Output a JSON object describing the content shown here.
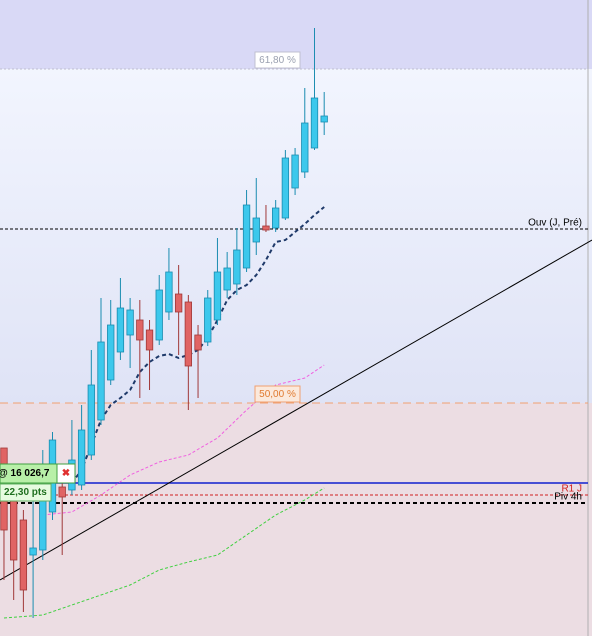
{
  "chart_data": {
    "type": "candlestick",
    "ylim": [
      15992.8,
      16120
    ],
    "xlim": [
      -0.41,
      60.6
    ],
    "up_color": "#3cc8ec",
    "down_color": "#e06464",
    "candles": {
      "open": [
        16030.4,
        16020,
        16016,
        16009,
        16010,
        16017.6,
        16022.6,
        16022,
        16023,
        16029,
        16036,
        16044,
        16049.6,
        16053,
        16056,
        16054,
        16052,
        16057.6,
        16061.2,
        16059.6,
        16053,
        16051.6,
        16056,
        16062,
        16063.2,
        16066.4,
        16071.6,
        16074.8,
        16074.4,
        16076.4,
        16082.4,
        16085.6,
        16090.4,
        16095.6
      ],
      "close": [
        16014,
        16008,
        16002,
        16010.4,
        16026,
        16032,
        16020.6,
        16028,
        16034,
        16043,
        16051.6,
        16055,
        16058.4,
        16058,
        16052,
        16050,
        16062,
        16065.6,
        16057.6,
        16046.8,
        16050,
        16060.4,
        16065.6,
        16066.4,
        16070,
        16079,
        16076.4,
        16074,
        16078.4,
        16088.4,
        16089,
        16095.4,
        16100.4,
        16096.8
      ],
      "high": [
        16030.4,
        16022,
        16018,
        16020,
        16030,
        16033.6,
        16026,
        16036,
        16039,
        16050,
        16060.4,
        16060,
        16064.4,
        16060.4,
        16060,
        16056,
        16065,
        16070.4,
        16067,
        16061,
        16055,
        16062,
        16072.4,
        16069.6,
        16074.4,
        16082,
        16084.4,
        16079,
        16080,
        16090,
        16090.4,
        16102.4,
        16114.4,
        16101.6
      ],
      "low": [
        16004,
        16000,
        15997.6,
        15996.4,
        16008,
        16016,
        16009,
        16021,
        16022,
        16028,
        16035,
        16043,
        16048,
        16046.4,
        16040.4,
        16042,
        16051,
        16056,
        16049,
        16038,
        16040.4,
        16050.8,
        16055,
        16060.4,
        16061,
        16065.6,
        16069,
        16073.6,
        16073.6,
        16076,
        16081,
        16084.4,
        16090,
        16093
      ]
    },
    "series": [
      {
        "color": "#1f3a6a",
        "style": "dashed",
        "x": [
          7,
          8,
          9,
          10,
          11,
          12,
          13,
          14,
          15,
          16,
          17,
          18,
          19,
          20,
          21,
          22,
          23,
          24,
          25,
          26,
          27,
          28,
          29,
          30,
          31,
          32,
          33
        ],
        "values": [
          16023.4,
          16026,
          16031,
          16036,
          16039,
          16040.4,
          16042,
          16045.6,
          16047.6,
          16048.8,
          16049.2,
          16048.4,
          16049,
          16050,
          16052.4,
          16056,
          16060,
          16062,
          16063,
          16065,
          16068,
          16071.6,
          16072,
          16073.6,
          16075.2,
          16077,
          16078.6
        ]
      },
      {
        "color": "#f060e0",
        "style": "dotted",
        "x": [
          4,
          7,
          10,
          13,
          16,
          19,
          22,
          25,
          28,
          31,
          33
        ],
        "values": [
          16017,
          16017.6,
          16021,
          16025,
          16027.6,
          16029,
          16032.4,
          16038,
          16043,
          16044.4,
          16047
        ]
      },
      {
        "color": "#40d040",
        "style": "dotted",
        "x": [
          0,
          4,
          7,
          10,
          13,
          16,
          19,
          22,
          25,
          28,
          31,
          33
        ],
        "values": [
          15996.4,
          15997,
          15999,
          16001,
          16003,
          16006,
          16007.6,
          16009,
          16013,
          16017,
          16020,
          16022.4
        ]
      }
    ],
    "trendline": {
      "x": [
        -0.41,
        60.6
      ],
      "values": [
        16004,
        16072
      ]
    },
    "order_line": {
      "value": 16023.4,
      "color": "#1020d0"
    },
    "levels": [
      {
        "label": "61,80 %",
        "value": 16106.2,
        "color": "#c0c0d0"
      },
      {
        "label": "50,00 %",
        "value": 16039.4,
        "color": "#f0a070"
      },
      {
        "label": "Ouv (J, Pré)",
        "value": 16074.2,
        "color": "#000000"
      },
      {
        "label": "R1 J",
        "value": 16021,
        "color": "#d02020"
      },
      {
        "label": "Piv 4h",
        "value": 16019.4,
        "color": "#000000"
      }
    ],
    "order": {
      "price": "@ 16 026,7",
      "distance": "22,30 pts"
    }
  }
}
